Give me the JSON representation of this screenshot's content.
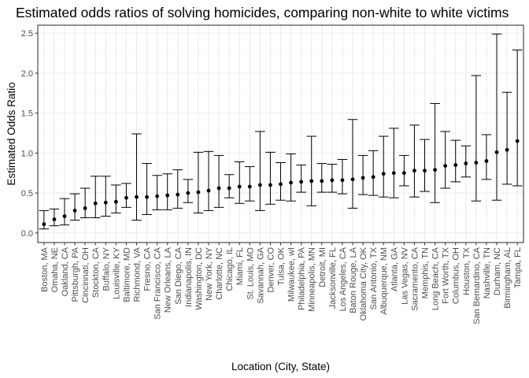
{
  "chart_data": {
    "type": "scatter",
    "title": "Estimated odds ratios of solving homicides, comparing non-white to white victims",
    "xlabel": "Location (City, State)",
    "ylabel": "Estimated Odds Ratio",
    "ylim": [
      -0.12,
      2.6
    ],
    "yticks": [
      0.0,
      0.5,
      1.0,
      1.5,
      2.0,
      2.5
    ],
    "ytick_labels": [
      "0.0",
      "0.5",
      "1.0",
      "1.5",
      "2.0",
      "2.5"
    ],
    "grid": true,
    "error_bars": true,
    "colors": {
      "point": "#000000",
      "errorbar": "#000000",
      "grid": "#ebebeb",
      "frame": "#333333"
    },
    "categories": [
      "Boston, MA",
      "Omaha, NE",
      "Oakland, CA",
      "Pittsburgh, PA",
      "Cincinnati, OH",
      "Stockton, CA",
      "Buffalo, NY",
      "Louisville, KY",
      "Baltimore, MD",
      "Richmond, VA",
      "Fresno, CA",
      "San Francisco, CA",
      "New Orleans, LA",
      "San Diego, CA",
      "Indianapolis, IN",
      "Washington, DC",
      "New York, NY",
      "Charlotte, NC",
      "Chicago, IL",
      "Miami, FL",
      "St. Louis, MO",
      "Savannah, GA",
      "Denver, CO",
      "Tulsa, OK",
      "Milwaukee, wI",
      "Philadelphia, PA",
      "Minneapolis, MN",
      "Detroit, MI",
      "Jacksonville, FL",
      "Los Angeles, CA",
      "Baton Rouge, LA",
      "Oklahoma City, OK",
      "San Antonio, TX",
      "Albuquerque, NM",
      "Atlanta, GA",
      "Las Vegas, NV",
      "Sacramento, CA",
      "Memphis, TN",
      "Long Beach, CA",
      "Fort Worth, TX",
      "Columbus, OH",
      "Houston, TX",
      "San Bernardino, CA",
      "Nashville, TN",
      "Durham, NC",
      "Birmingham, AL",
      "Tampa, FL"
    ],
    "values": [
      0.11,
      0.17,
      0.21,
      0.28,
      0.31,
      0.37,
      0.38,
      0.39,
      0.44,
      0.45,
      0.45,
      0.46,
      0.47,
      0.48,
      0.5,
      0.51,
      0.53,
      0.56,
      0.56,
      0.58,
      0.58,
      0.6,
      0.6,
      0.61,
      0.63,
      0.64,
      0.65,
      0.65,
      0.66,
      0.66,
      0.67,
      0.69,
      0.7,
      0.74,
      0.75,
      0.75,
      0.78,
      0.78,
      0.79,
      0.84,
      0.85,
      0.87,
      0.88,
      0.9,
      1.01,
      1.04,
      1.15
    ],
    "lower": [
      0.05,
      0.09,
      0.1,
      0.16,
      0.19,
      0.19,
      0.21,
      0.25,
      0.32,
      0.16,
      0.23,
      0.29,
      0.29,
      0.31,
      0.38,
      0.25,
      0.28,
      0.32,
      0.44,
      0.37,
      0.4,
      0.28,
      0.36,
      0.41,
      0.4,
      0.51,
      0.34,
      0.51,
      0.51,
      0.49,
      0.31,
      0.48,
      0.47,
      0.45,
      0.44,
      0.59,
      0.45,
      0.52,
      0.38,
      0.56,
      0.64,
      0.7,
      0.4,
      0.67,
      0.41,
      0.61,
      0.59
    ],
    "upper": [
      0.28,
      0.3,
      0.43,
      0.49,
      0.56,
      0.71,
      0.71,
      0.6,
      0.62,
      1.24,
      0.87,
      0.72,
      0.74,
      0.79,
      0.67,
      1.01,
      1.02,
      0.97,
      0.73,
      0.89,
      0.83,
      1.27,
      1.01,
      0.88,
      0.99,
      0.85,
      1.21,
      0.87,
      0.86,
      0.92,
      1.42,
      0.97,
      1.03,
      1.21,
      1.31,
      0.97,
      1.35,
      1.17,
      1.62,
      1.27,
      1.16,
      1.09,
      1.97,
      1.23,
      2.49,
      1.76,
      2.29
    ]
  }
}
